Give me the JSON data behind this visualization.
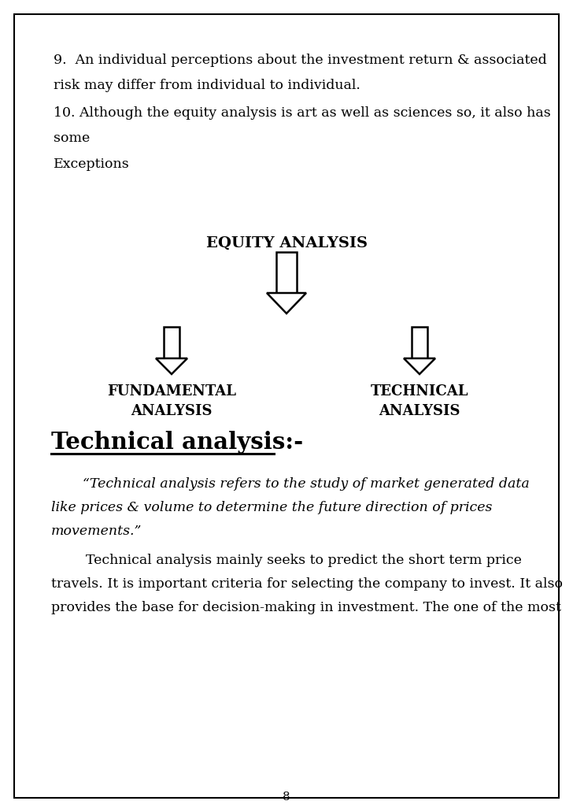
{
  "bg_color": "#ffffff",
  "border_color": "#000000",
  "text_color": "#000000",
  "page_number": "8",
  "para9": "9.  An individual perceptions about the investment return & associated",
  "para9b": "risk may differ from individual to individual.",
  "para10": "10. Although the equity analysis is art as well as sciences so, it also has",
  "para10b": "some",
  "para10c": "Exceptions",
  "equity_label": "EQUITY ANALYSIS",
  "fundamental_label1": "FUNDAMENTAL",
  "fundamental_label2": "ANALYSIS",
  "technical_label1": "TECHNICAL",
  "technical_label2": "ANALYSIS",
  "section_title": "Technical analysis:-",
  "quote_line1": "“Technical analysis refers to the study of market generated data",
  "quote_line2": "like prices & volume to determine the future direction of prices",
  "quote_line3": "movements.”",
  "body_line1": "        Technical analysis mainly seeks to predict the short term price",
  "body_line2": "travels. It is important criteria for selecting the company to invest. It also",
  "body_line3": "provides the base for decision-making in investment. The one of the most"
}
